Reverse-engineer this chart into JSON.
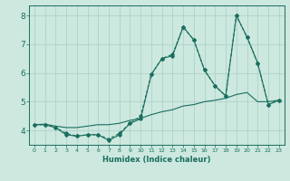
{
  "title": "",
  "xlabel": "Humidex (Indice chaleur)",
  "xlim": [
    -0.5,
    23.5
  ],
  "ylim": [
    3.5,
    8.35
  ],
  "bg_color": "#cce8df",
  "grid_color": "#aacfc5",
  "line_color": "#1a6e5e",
  "xticks": [
    0,
    1,
    2,
    3,
    4,
    5,
    6,
    7,
    8,
    9,
    10,
    11,
    12,
    13,
    14,
    15,
    16,
    17,
    18,
    19,
    20,
    21,
    22,
    23
  ],
  "yticks": [
    4,
    5,
    6,
    7,
    8
  ],
  "line1_x": [
    0,
    1,
    2,
    3,
    4,
    5,
    6,
    7,
    8,
    9,
    10,
    11,
    12,
    13,
    14,
    15,
    16,
    17,
    18,
    19,
    20,
    21,
    22,
    23
  ],
  "line1_y": [
    4.2,
    4.2,
    4.1,
    3.85,
    3.8,
    3.85,
    3.85,
    3.65,
    3.85,
    4.25,
    4.4,
    5.95,
    6.5,
    6.6,
    7.6,
    7.15,
    6.1,
    5.55,
    5.2,
    8.0,
    7.25,
    6.35,
    4.9,
    5.05
  ],
  "line2_x": [
    0,
    1,
    2,
    3,
    4,
    5,
    6,
    7,
    8,
    9,
    10,
    11,
    12,
    13,
    14,
    15,
    16,
    17,
    18,
    19,
    20,
    21,
    22,
    23
  ],
  "line2_y": [
    4.2,
    4.2,
    4.1,
    3.9,
    3.8,
    3.85,
    3.85,
    3.7,
    3.9,
    4.25,
    4.5,
    5.95,
    6.5,
    6.65,
    7.6,
    7.15,
    6.1,
    5.55,
    5.2,
    8.0,
    7.25,
    6.35,
    4.9,
    5.05
  ],
  "line3_x": [
    0,
    1,
    2,
    3,
    4,
    5,
    6,
    7,
    8,
    9,
    10,
    11,
    12,
    13,
    14,
    15,
    16,
    17,
    18,
    19,
    20,
    21,
    22,
    23
  ],
  "line3_y": [
    4.2,
    4.22,
    4.15,
    4.1,
    4.1,
    4.15,
    4.2,
    4.2,
    4.25,
    4.35,
    4.42,
    4.55,
    4.65,
    4.72,
    4.85,
    4.9,
    5.0,
    5.05,
    5.12,
    5.25,
    5.32,
    5.0,
    5.0,
    5.05
  ]
}
